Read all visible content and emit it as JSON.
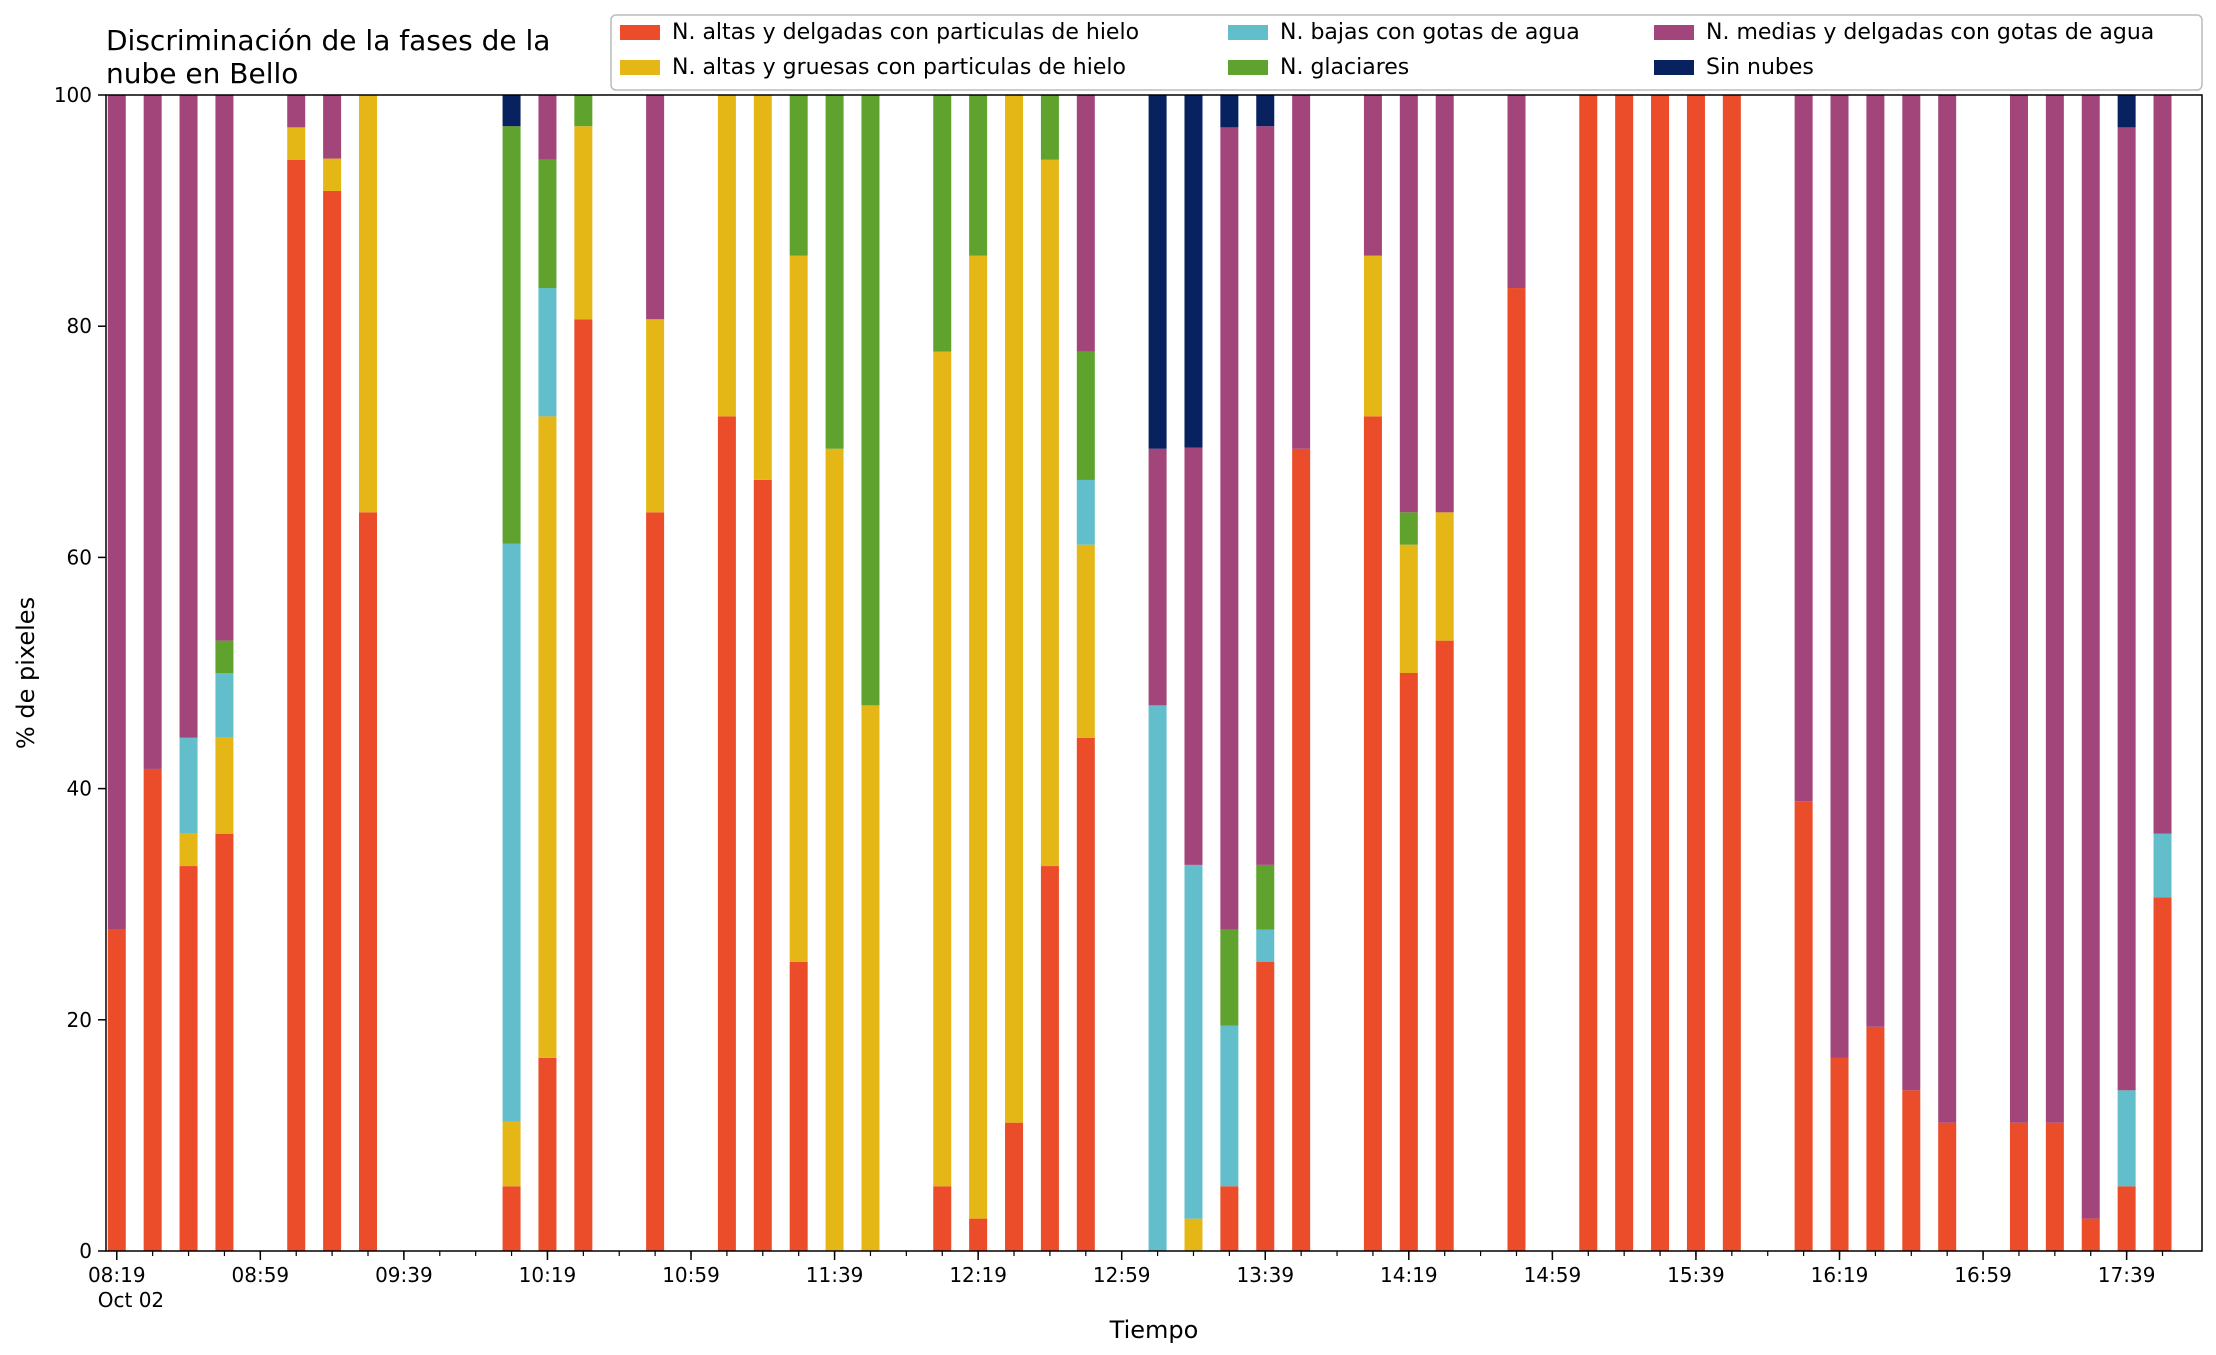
{
  "chart_data": {
    "type": "bar",
    "stacked": true,
    "title_lines": [
      "Discriminación de la fases de la",
      "nube en Bello"
    ],
    "xlabel": "Tiempo",
    "ylabel": "% de pixeles",
    "ylim": [
      0,
      100
    ],
    "y_ticks": [
      0,
      20,
      40,
      60,
      80,
      100
    ],
    "x_tick_labels": [
      "08:19",
      "08:59",
      "09:39",
      "10:19",
      "10:59",
      "11:39",
      "12:19",
      "12:59",
      "13:39",
      "14:19",
      "14:59",
      "15:39",
      "16:19",
      "16:59",
      "17:39"
    ],
    "x_date_label": "Oct 02",
    "x_start": "08:19",
    "x_end": "17:49",
    "x_minor_step_minutes": 10,
    "legend_position": "top-right",
    "series": [
      {
        "name": "N. altas y delgadas con particulas de hielo",
        "color": "#EB4C2A"
      },
      {
        "name": "N. altas y gruesas con particulas de hielo",
        "color": "#E5B716"
      },
      {
        "name": "N. bajas con gotas de agua",
        "color": "#62BECA"
      },
      {
        "name": "N. glaciares",
        "color": "#5FA22E"
      },
      {
        "name": "N. medias y delgadas con gotas de agua",
        "color": "#A1457A"
      },
      {
        "name": "Sin nubes",
        "color": "#08215F"
      }
    ],
    "bars": [
      {
        "time": "08:19",
        "values": [
          27.8,
          0,
          0,
          0,
          72.2,
          0
        ]
      },
      {
        "time": "08:29",
        "values": [
          41.7,
          0,
          0,
          0,
          58.3,
          0
        ]
      },
      {
        "time": "08:39",
        "values": [
          33.3,
          2.8,
          8.3,
          0,
          55.6,
          0
        ]
      },
      {
        "time": "08:49",
        "values": [
          36.1,
          8.3,
          5.6,
          2.8,
          47.2,
          0
        ]
      },
      {
        "time": "09:09",
        "values": [
          94.4,
          2.8,
          0,
          0,
          2.8,
          0
        ]
      },
      {
        "time": "09:19",
        "values": [
          91.7,
          2.8,
          0,
          0,
          5.5,
          0
        ]
      },
      {
        "time": "09:29",
        "values": [
          63.9,
          36.1,
          0,
          0,
          0,
          0
        ]
      },
      {
        "time": "10:09",
        "values": [
          5.6,
          5.6,
          50.0,
          36.1,
          0,
          2.7
        ]
      },
      {
        "time": "10:19",
        "values": [
          16.7,
          55.5,
          11.1,
          11.1,
          5.6,
          0
        ]
      },
      {
        "time": "10:29",
        "values": [
          80.6,
          16.7,
          0,
          2.7,
          0,
          0
        ]
      },
      {
        "time": "10:49",
        "values": [
          63.9,
          16.7,
          0,
          0,
          19.4,
          0
        ]
      },
      {
        "time": "11:09",
        "values": [
          72.2,
          27.8,
          0,
          0,
          0,
          0
        ]
      },
      {
        "time": "11:19",
        "values": [
          66.7,
          33.3,
          0,
          0,
          0,
          0
        ]
      },
      {
        "time": "11:29",
        "values": [
          25.0,
          61.1,
          0,
          13.9,
          0,
          0
        ]
      },
      {
        "time": "11:39",
        "values": [
          0,
          69.4,
          0,
          30.6,
          0,
          0
        ]
      },
      {
        "time": "11:49",
        "values": [
          0,
          47.2,
          0,
          52.8,
          0,
          0
        ]
      },
      {
        "time": "12:09",
        "values": [
          5.6,
          72.2,
          0,
          22.2,
          0,
          0
        ]
      },
      {
        "time": "12:19",
        "values": [
          2.8,
          83.3,
          0,
          13.9,
          0,
          0
        ]
      },
      {
        "time": "12:29",
        "values": [
          11.1,
          88.9,
          0,
          0,
          0,
          0
        ]
      },
      {
        "time": "12:39",
        "values": [
          33.3,
          61.1,
          0,
          5.6,
          0,
          0
        ]
      },
      {
        "time": "12:49",
        "values": [
          44.4,
          16.7,
          5.6,
          11.1,
          22.2,
          0
        ]
      },
      {
        "time": "13:09",
        "values": [
          0,
          0,
          47.2,
          0,
          22.2,
          30.6
        ]
      },
      {
        "time": "13:19",
        "values": [
          0,
          2.8,
          30.6,
          0,
          36.1,
          30.5
        ]
      },
      {
        "time": "13:29",
        "values": [
          5.6,
          0,
          13.9,
          8.3,
          69.4,
          2.8
        ]
      },
      {
        "time": "13:39",
        "values": [
          25.0,
          0,
          2.8,
          5.6,
          63.9,
          2.7
        ]
      },
      {
        "time": "13:49",
        "values": [
          69.4,
          0,
          0,
          0,
          30.6,
          0
        ]
      },
      {
        "time": "14:09",
        "values": [
          72.2,
          13.9,
          0,
          0,
          13.9,
          0
        ]
      },
      {
        "time": "14:19",
        "values": [
          50.0,
          11.1,
          0,
          2.8,
          36.1,
          0
        ]
      },
      {
        "time": "14:29",
        "values": [
          52.8,
          11.1,
          0,
          0,
          36.1,
          0
        ]
      },
      {
        "time": "14:49",
        "values": [
          83.3,
          0,
          0,
          0,
          16.7,
          0
        ]
      },
      {
        "time": "15:09",
        "values": [
          100,
          0,
          0,
          0,
          0,
          0
        ]
      },
      {
        "time": "15:19",
        "values": [
          100,
          0,
          0,
          0,
          0,
          0
        ]
      },
      {
        "time": "15:29",
        "values": [
          100,
          0,
          0,
          0,
          0,
          0
        ]
      },
      {
        "time": "15:39",
        "values": [
          100,
          0,
          0,
          0,
          0,
          0
        ]
      },
      {
        "time": "15:49",
        "values": [
          100,
          0,
          0,
          0,
          0,
          0
        ]
      },
      {
        "time": "16:09",
        "values": [
          38.9,
          0,
          0,
          0,
          61.1,
          0
        ]
      },
      {
        "time": "16:19",
        "values": [
          16.7,
          0,
          0,
          0,
          83.3,
          0
        ]
      },
      {
        "time": "16:29",
        "values": [
          19.4,
          0,
          0,
          0,
          80.6,
          0
        ]
      },
      {
        "time": "16:39",
        "values": [
          13.9,
          0,
          0,
          0,
          86.1,
          0
        ]
      },
      {
        "time": "16:49",
        "values": [
          11.1,
          0,
          0,
          0,
          88.9,
          0
        ]
      },
      {
        "time": "17:09",
        "values": [
          11.1,
          0,
          0,
          0,
          88.9,
          0
        ]
      },
      {
        "time": "17:19",
        "values": [
          11.1,
          0,
          0,
          0,
          88.9,
          0
        ]
      },
      {
        "time": "17:29",
        "values": [
          2.8,
          0,
          0,
          0,
          97.2,
          0
        ]
      },
      {
        "time": "17:39",
        "values": [
          5.6,
          0,
          8.3,
          0,
          83.3,
          2.8
        ]
      },
      {
        "time": "17:49",
        "values": [
          30.6,
          0,
          5.5,
          0,
          63.9,
          0
        ]
      }
    ]
  }
}
